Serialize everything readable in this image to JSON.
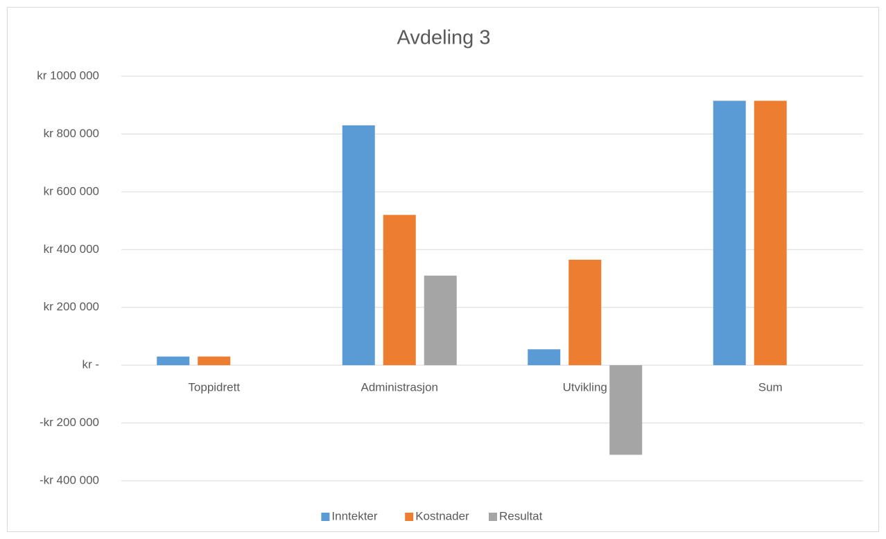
{
  "chart_data": {
    "type": "bar",
    "title": "Avdeling 3",
    "categories": [
      "Toppidrett",
      "Administrasjon",
      "Utvikling",
      "Sum"
    ],
    "series": [
      {
        "name": "Inntekter",
        "color": "#5b9bd5",
        "values": [
          30000,
          830000,
          55000,
          915000
        ]
      },
      {
        "name": "Kostnader",
        "color": "#ed7d31",
        "values": [
          30000,
          520000,
          365000,
          915000
        ]
      },
      {
        "name": "Resultat",
        "color": "#a5a5a5",
        "values": [
          0,
          310000,
          -310000,
          0
        ]
      }
    ],
    "ylim": [
      -400000,
      1000000
    ],
    "yticks": [
      {
        "value": -400000,
        "label": "-kr 400 000"
      },
      {
        "value": -200000,
        "label": "-kr 200 000"
      },
      {
        "value": 0,
        "label": "kr -"
      },
      {
        "value": 200000,
        "label": "kr 200 000"
      },
      {
        "value": 400000,
        "label": "kr 400 000"
      },
      {
        "value": 600000,
        "label": "kr 600 000"
      },
      {
        "value": 800000,
        "label": "kr 800 000"
      },
      {
        "value": 1000000,
        "label": "kr 1000 000"
      }
    ],
    "grid": true,
    "legend": "bottom"
  }
}
